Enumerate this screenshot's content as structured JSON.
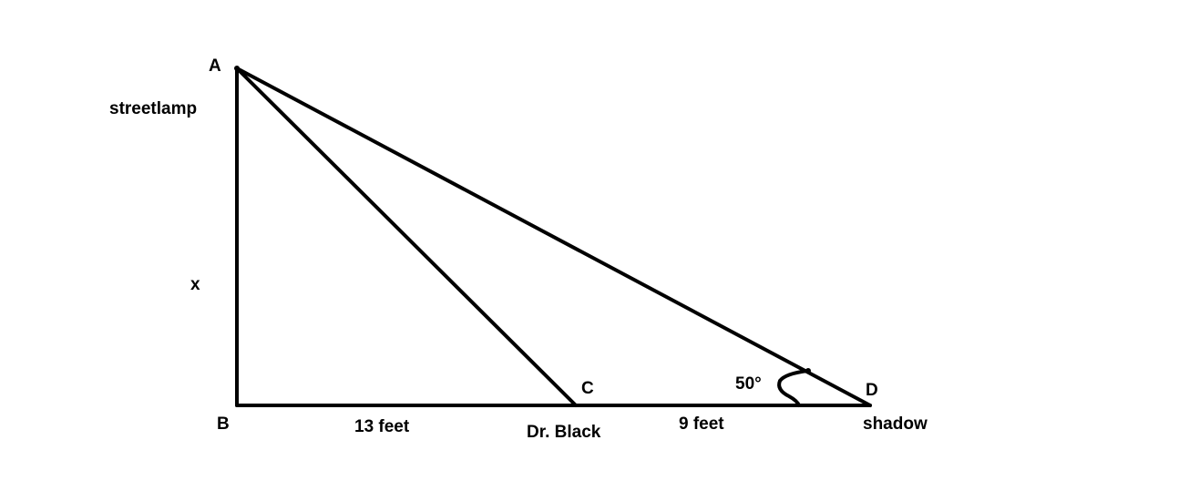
{
  "diagram": {
    "stroke_color": "#000000",
    "background": "#ffffff",
    "points": {
      "A": "A",
      "B": "B",
      "C": "C",
      "D": "D"
    },
    "labels": {
      "streetlamp": "streetlamp",
      "height": "x",
      "bc_length": "13 feet",
      "person": "Dr. Black",
      "cd_length": "9 feet",
      "angle": "50°",
      "shadow": "shadow"
    }
  }
}
